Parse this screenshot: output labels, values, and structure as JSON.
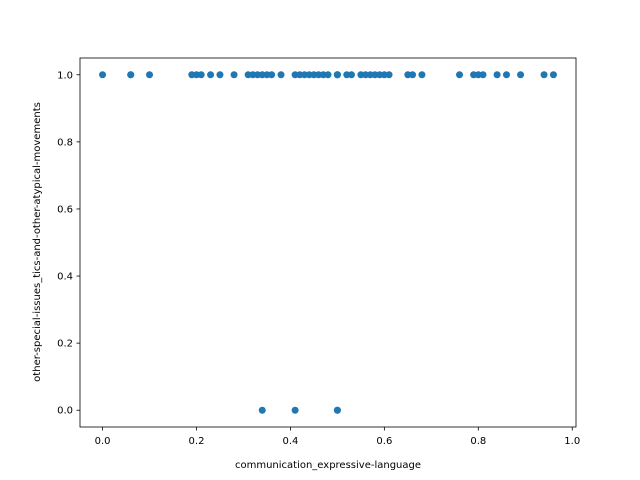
{
  "chart_data": {
    "type": "scatter",
    "title": "",
    "xlabel": "communication_expressive-language",
    "ylabel": "other-special-issues_tics-and-other-atypical-movements",
    "xlim": [
      -0.048,
      1.008
    ],
    "ylim": [
      -0.05,
      1.05
    ],
    "xticks": [
      "0.0",
      "0.2",
      "0.4",
      "0.6",
      "0.8",
      "1.0"
    ],
    "yticks": [
      "0.0",
      "0.2",
      "0.4",
      "0.6",
      "0.8",
      "1.0"
    ],
    "grid": false,
    "point_color": "#1f77b4",
    "series": [
      {
        "x": [
          0.0,
          0.06,
          0.06,
          0.1,
          0.19,
          0.2,
          0.21,
          0.23,
          0.25,
          0.28,
          0.31,
          0.32,
          0.33,
          0.34,
          0.35,
          0.36,
          0.38,
          0.41,
          0.42,
          0.43,
          0.44,
          0.45,
          0.46,
          0.47,
          0.48,
          0.5,
          0.5,
          0.5,
          0.52,
          0.53,
          0.55,
          0.56,
          0.57,
          0.58,
          0.59,
          0.6,
          0.61,
          0.65,
          0.66,
          0.68,
          0.76,
          0.79,
          0.8,
          0.81,
          0.84,
          0.86,
          0.89,
          0.94,
          0.96,
          0.34,
          0.41,
          0.5,
          0.5
        ],
        "y": [
          1,
          1,
          1,
          1,
          1,
          1,
          1,
          1,
          1,
          1,
          1,
          1,
          1,
          1,
          1,
          1,
          1,
          1,
          1,
          1,
          1,
          1,
          1,
          1,
          1,
          1,
          1,
          1,
          1,
          1,
          1,
          1,
          1,
          1,
          1,
          1,
          1,
          1,
          1,
          1,
          1,
          1,
          1,
          1,
          1,
          1,
          1,
          1,
          1,
          0,
          0,
          0,
          0
        ]
      }
    ]
  }
}
